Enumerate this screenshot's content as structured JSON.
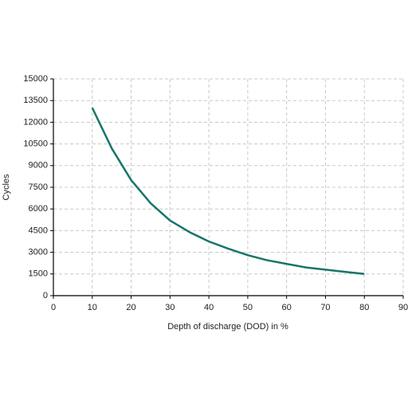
{
  "chart_data": {
    "type": "line",
    "xlabel": "Depth of discharge (DOD) in %",
    "ylabel": "Cycles",
    "x": [
      10,
      15,
      20,
      25,
      30,
      35,
      40,
      45,
      50,
      55,
      60,
      65,
      70,
      75,
      80
    ],
    "series": [
      {
        "name": "Cycles",
        "color": "#17756b",
        "values": [
          13000,
          10200,
          8000,
          6400,
          5200,
          4400,
          3750,
          3250,
          2800,
          2450,
          2200,
          1950,
          1800,
          1650,
          1500
        ]
      }
    ],
    "xlim": [
      0,
      90
    ],
    "xticks": [
      0,
      10,
      20,
      30,
      40,
      50,
      60,
      70,
      80,
      90
    ],
    "ylim": [
      0,
      15000
    ],
    "yticks": [
      0,
      1500,
      3000,
      4500,
      6000,
      7500,
      9000,
      10500,
      12000,
      13500,
      15000
    ],
    "grid": true
  }
}
